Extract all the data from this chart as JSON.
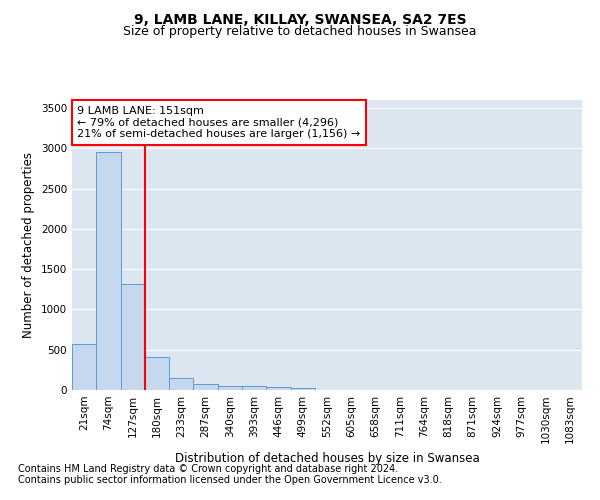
{
  "title_line1": "9, LAMB LANE, KILLAY, SWANSEA, SA2 7ES",
  "title_line2": "Size of property relative to detached houses in Swansea",
  "xlabel": "Distribution of detached houses by size in Swansea",
  "ylabel": "Number of detached properties",
  "bar_color": "#c5d8ed",
  "bar_edge_color": "#5b9bd5",
  "background_color": "#dce6f1",
  "grid_color": "white",
  "bin_labels": [
    "21sqm",
    "74sqm",
    "127sqm",
    "180sqm",
    "233sqm",
    "287sqm",
    "340sqm",
    "393sqm",
    "446sqm",
    "499sqm",
    "552sqm",
    "605sqm",
    "658sqm",
    "711sqm",
    "764sqm",
    "818sqm",
    "871sqm",
    "924sqm",
    "977sqm",
    "1030sqm",
    "1083sqm"
  ],
  "bar_values": [
    570,
    2950,
    1310,
    415,
    155,
    75,
    50,
    45,
    40,
    30,
    0,
    0,
    0,
    0,
    0,
    0,
    0,
    0,
    0,
    0,
    0
  ],
  "red_line_x": 2.5,
  "annotation_text": "9 LAMB LANE: 151sqm\n← 79% of detached houses are smaller (4,296)\n21% of semi-detached houses are larger (1,156) →",
  "annotation_box_color": "white",
  "annotation_box_edge_color": "red",
  "ylim": [
    0,
    3600
  ],
  "yticks": [
    0,
    500,
    1000,
    1500,
    2000,
    2500,
    3000,
    3500
  ],
  "footnote_line1": "Contains HM Land Registry data © Crown copyright and database right 2024.",
  "footnote_line2": "Contains public sector information licensed under the Open Government Licence v3.0.",
  "title_fontsize": 10,
  "subtitle_fontsize": 9,
  "annotation_fontsize": 8,
  "axis_label_fontsize": 8.5,
  "tick_fontsize": 7.5,
  "footnote_fontsize": 7
}
